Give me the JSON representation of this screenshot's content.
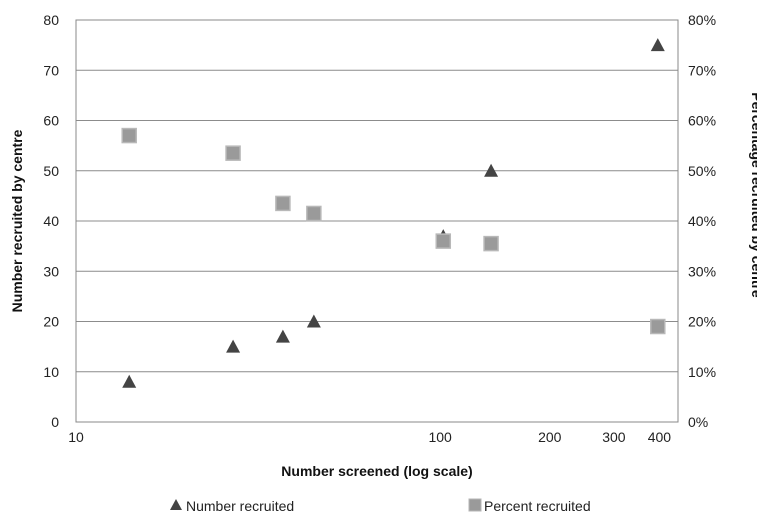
{
  "chart_data": {
    "type": "scatter",
    "x_scale": "log",
    "grid": true,
    "legend_position": "bottom",
    "xlabel": "Number screened (log scale)",
    "ylabel_left": "Number recruited by centre",
    "ylabel_right": "Percentage recruited by centre",
    "xlim": [
      10,
      450
    ],
    "x_ticks": [
      {
        "value": 10,
        "label": "10"
      },
      {
        "value": 100,
        "label": "100"
      },
      {
        "value": 200,
        "label": "200"
      },
      {
        "value": 300,
        "label": "300"
      },
      {
        "value": 400,
        "label": "400"
      }
    ],
    "y_left": {
      "min": 0,
      "max": 80,
      "ticks": [
        "0",
        "10",
        "20",
        "30",
        "40",
        "50",
        "60",
        "70",
        "80"
      ]
    },
    "y_right": {
      "min": 0,
      "max": 0.8,
      "ticks": [
        "0%",
        "10%",
        "20%",
        "30%",
        "40%",
        "50%",
        "60%",
        "70%",
        "80%"
      ]
    },
    "series": [
      {
        "name": "Number recruited",
        "axis": "left",
        "marker": "triangle",
        "color": "#444444",
        "points": [
          {
            "x": 14,
            "y": 8
          },
          {
            "x": 27,
            "y": 15
          },
          {
            "x": 37,
            "y": 17
          },
          {
            "x": 45,
            "y": 20
          },
          {
            "x": 102,
            "y": 37
          },
          {
            "x": 138,
            "y": 50
          },
          {
            "x": 396,
            "y": 75
          }
        ]
      },
      {
        "name": "Percent recruited",
        "axis": "right",
        "marker": "square",
        "color": "#9a9a9a",
        "points": [
          {
            "x": 14,
            "y": 0.57
          },
          {
            "x": 27,
            "y": 0.535
          },
          {
            "x": 37,
            "y": 0.435
          },
          {
            "x": 45,
            "y": 0.415
          },
          {
            "x": 102,
            "y": 0.36
          },
          {
            "x": 138,
            "y": 0.355
          },
          {
            "x": 396,
            "y": 0.19
          }
        ]
      }
    ]
  }
}
